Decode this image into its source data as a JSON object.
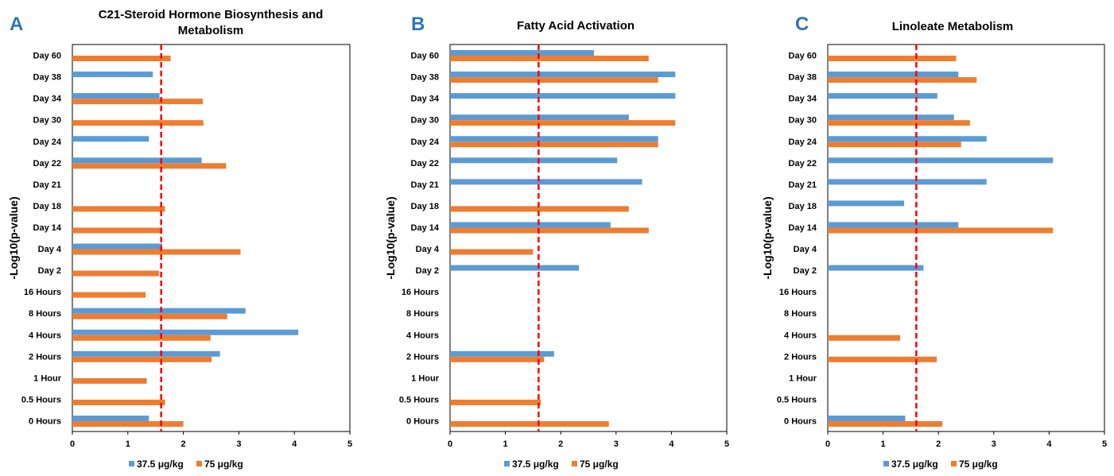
{
  "chart_data": [
    {
      "panel": "A",
      "type": "bar",
      "orientation": "horizontal",
      "title": "C21-Steroid Hormone Biosynthesis and Metabolism",
      "title_lines": [
        "C21-Steroid Hormone Biosynthesis and",
        "Metabolism"
      ],
      "ylabel": "-Log10(p-value)",
      "xlabel": "",
      "categories": [
        "Day 60",
        "Day 38",
        "Day 34",
        "Day 30",
        "Day 24",
        "Day 22",
        "Day 21",
        "Day 18",
        "Day 14",
        "Day 4",
        "Day 2",
        "16 Hours",
        "8 Hours",
        "4 Hours",
        "2 Hours",
        "1 Hour",
        "0.5 Hours",
        "0 Hours"
      ],
      "series": [
        {
          "name": "37.5 μg/kg",
          "color": "#5b9bd5",
          "values": [
            null,
            1.45,
            1.57,
            null,
            1.38,
            2.33,
            null,
            null,
            null,
            1.62,
            null,
            null,
            3.12,
            4.07,
            2.66,
            null,
            null,
            1.38
          ]
        },
        {
          "name": "75 μg/kg",
          "color": "#ed7d31",
          "values": [
            1.77,
            null,
            2.35,
            2.36,
            null,
            2.77,
            null,
            1.67,
            1.62,
            3.03,
            1.56,
            1.32,
            2.79,
            2.49,
            2.51,
            1.34,
            1.67,
            2.0
          ]
        }
      ],
      "xlim": [
        0,
        5
      ],
      "xticks": [
        "0",
        "1",
        "2",
        "3",
        "4",
        "5"
      ],
      "threshold": 1.6,
      "threshold_color": "#ff0000",
      "grid": false,
      "legend_position": "bottom"
    },
    {
      "panel": "B",
      "type": "bar",
      "orientation": "horizontal",
      "title": "Fatty Acid Activation",
      "title_lines": [
        "Fatty Acid Activation"
      ],
      "ylabel": "-Log10(p-value)",
      "xlabel": "",
      "categories": [
        "Day 60",
        "Day 38",
        "Day 34",
        "Day 30",
        "Day 24",
        "Day 22",
        "Day 21",
        "Day 18",
        "Day 14",
        "Day 4",
        "Day 2",
        "16 Hours",
        "8 Hours",
        "4 Hours",
        "2 Hours",
        "1 Hour",
        "0.5 Hours",
        "0 Hours"
      ],
      "series": [
        {
          "name": "37.5 μg/kg",
          "color": "#5b9bd5",
          "values": [
            2.6,
            4.07,
            4.07,
            3.23,
            3.76,
            3.02,
            3.47,
            null,
            2.9,
            null,
            2.33,
            null,
            null,
            null,
            1.88,
            null,
            null,
            null
          ]
        },
        {
          "name": "75 μg/kg",
          "color": "#ed7d31",
          "values": [
            3.59,
            3.76,
            null,
            4.07,
            3.76,
            null,
            null,
            3.23,
            3.59,
            1.5,
            null,
            null,
            null,
            null,
            1.7,
            null,
            1.64,
            2.87
          ]
        }
      ],
      "xlim": [
        0,
        5
      ],
      "xticks": [
        "0",
        "1",
        "2",
        "3",
        "4",
        "5"
      ],
      "threshold": 1.6,
      "threshold_color": "#ff0000",
      "grid": false,
      "legend_position": "bottom"
    },
    {
      "panel": "C",
      "type": "bar",
      "orientation": "horizontal",
      "title": "Linoleate Metabolism",
      "title_lines": [
        "Linoleate Metabolism"
      ],
      "ylabel": "-Log10(p-value)",
      "xlabel": "",
      "categories": [
        "Day 60",
        "Day 38",
        "Day 34",
        "Day 30",
        "Day 24",
        "Day 22",
        "Day 21",
        "Day 18",
        "Day 14",
        "Day 4",
        "Day 2",
        "16 Hours",
        "8 Hours",
        "4 Hours",
        "2 Hours",
        "1 Hour",
        "0.5 Hours",
        "0 Hours"
      ],
      "series": [
        {
          "name": "37.5 μg/kg",
          "color": "#5b9bd5",
          "values": [
            null,
            2.36,
            1.98,
            2.28,
            2.87,
            4.07,
            2.87,
            1.38,
            2.36,
            null,
            1.73,
            null,
            null,
            null,
            null,
            null,
            null,
            1.4
          ]
        },
        {
          "name": "75 μg/kg",
          "color": "#ed7d31",
          "values": [
            2.32,
            2.69,
            null,
            2.57,
            2.41,
            null,
            null,
            null,
            4.07,
            null,
            null,
            null,
            null,
            1.31,
            1.97,
            null,
            null,
            2.07
          ]
        }
      ],
      "xlim": [
        0,
        5
      ],
      "xticks": [
        "0",
        "1",
        "2",
        "3",
        "4",
        "5"
      ],
      "threshold": 1.6,
      "threshold_color": "#ff0000",
      "grid": false,
      "legend_position": "bottom"
    }
  ],
  "panel_letter_color": "#2e75b6"
}
